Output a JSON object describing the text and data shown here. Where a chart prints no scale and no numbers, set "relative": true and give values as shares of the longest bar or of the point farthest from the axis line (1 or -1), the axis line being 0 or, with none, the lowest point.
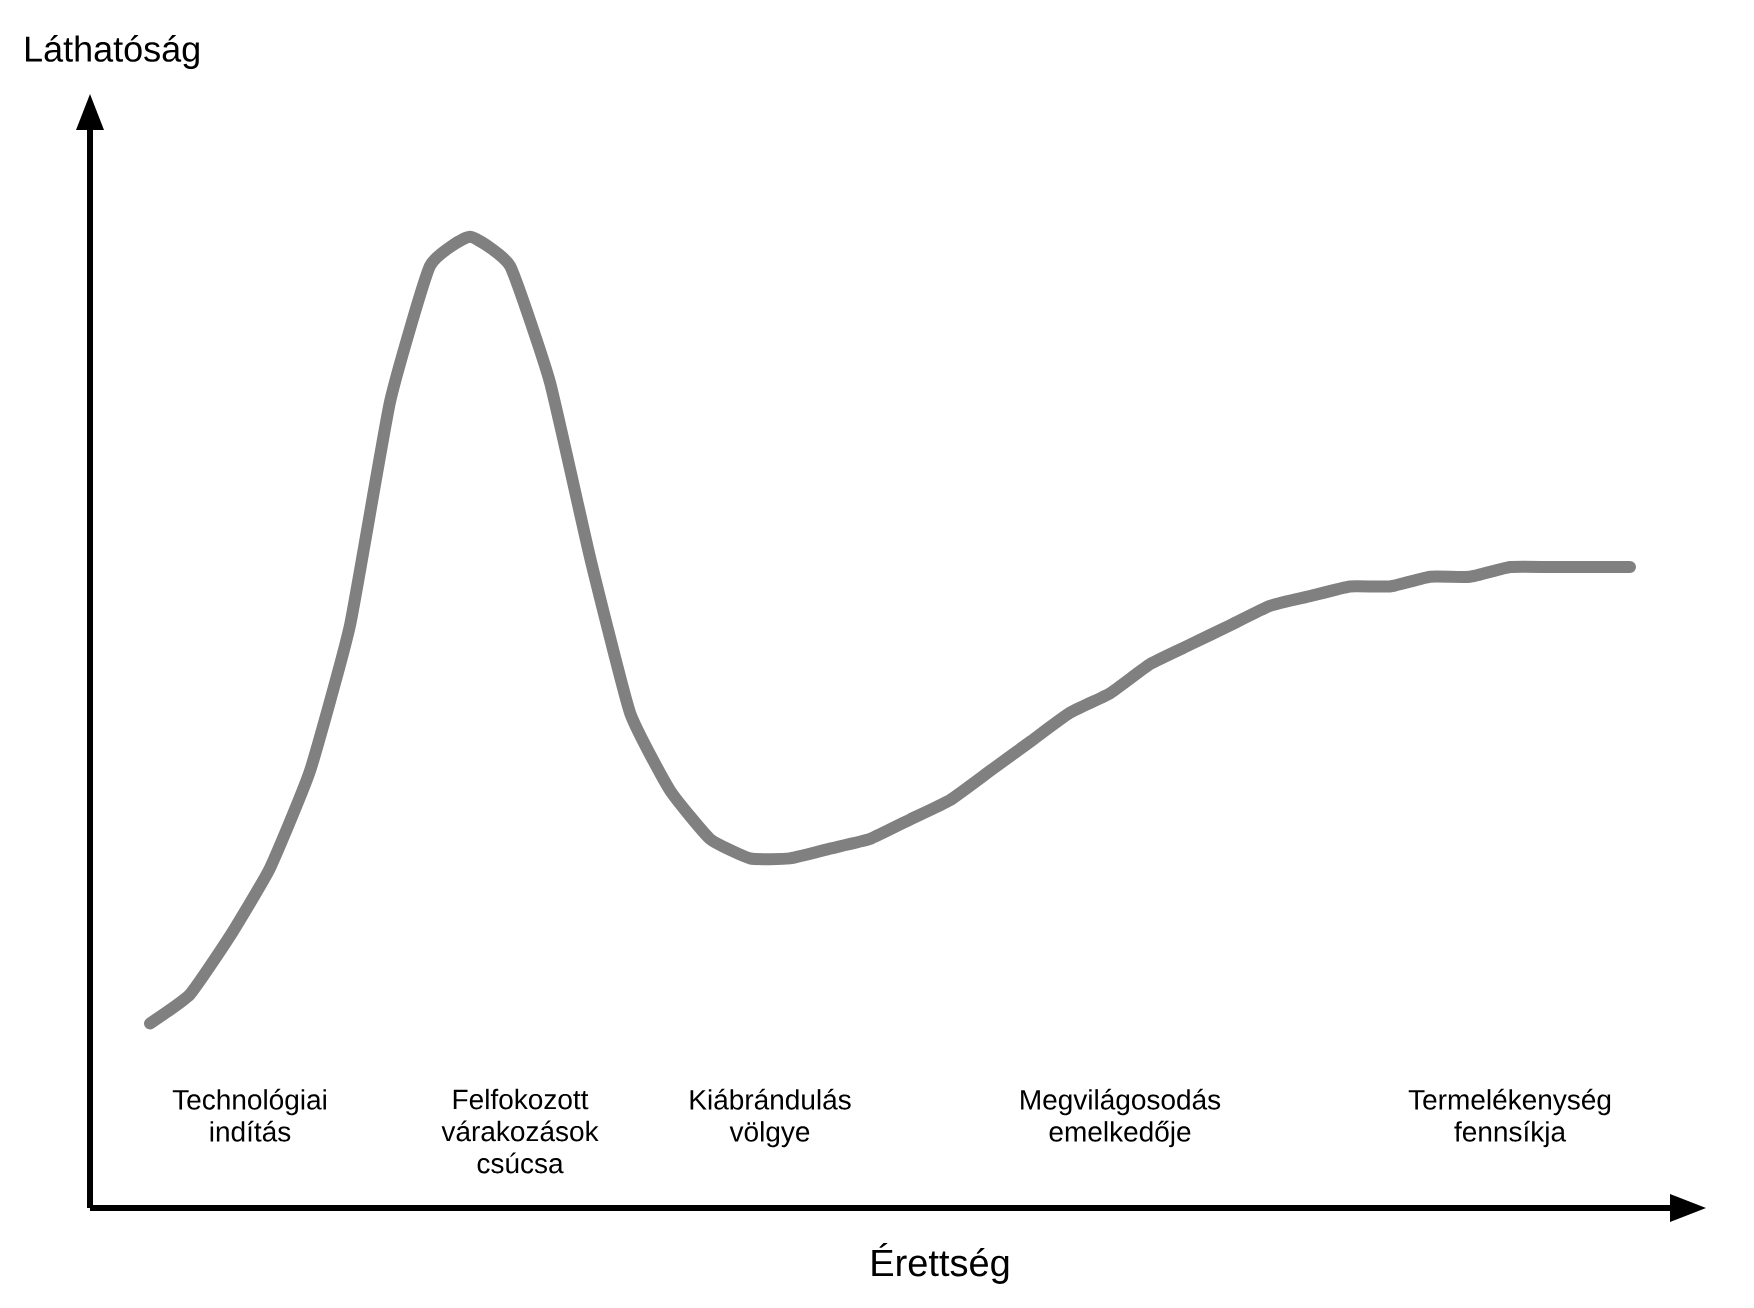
{
  "chart_data": {
    "type": "line",
    "relative": true,
    "xlabel": "Érettség",
    "ylabel": "Láthatóság",
    "categories": [
      null,
      null,
      null,
      null,
      null,
      null,
      null,
      null,
      null,
      null,
      null,
      null,
      null,
      null,
      null,
      null,
      null,
      null,
      null,
      null,
      null,
      null,
      null,
      null,
      null,
      null,
      null,
      null,
      null,
      null,
      null,
      null,
      null,
      null,
      null,
      null,
      null,
      null
    ],
    "values": [
      0.19,
      0.22,
      0.28,
      0.35,
      0.45,
      0.6,
      0.83,
      0.97,
      1.0,
      0.97,
      0.85,
      0.67,
      0.51,
      0.43,
      0.38,
      0.36,
      0.36,
      0.37,
      0.38,
      0.4,
      0.42,
      0.45,
      0.48,
      0.51,
      0.53,
      0.56,
      0.58,
      0.6,
      0.62,
      0.63,
      0.64,
      0.64,
      0.65,
      0.65,
      0.66,
      0.66,
      0.66,
      0.66
    ],
    "color": "#808080",
    "annotations": [
      "Technológiai indítás",
      "Felfokozott várakozások csúcsa",
      "Kiábrándulás völgye",
      "Megvilágosodás emelkedője",
      "Termelékenység fennsíkja"
    ]
  }
}
